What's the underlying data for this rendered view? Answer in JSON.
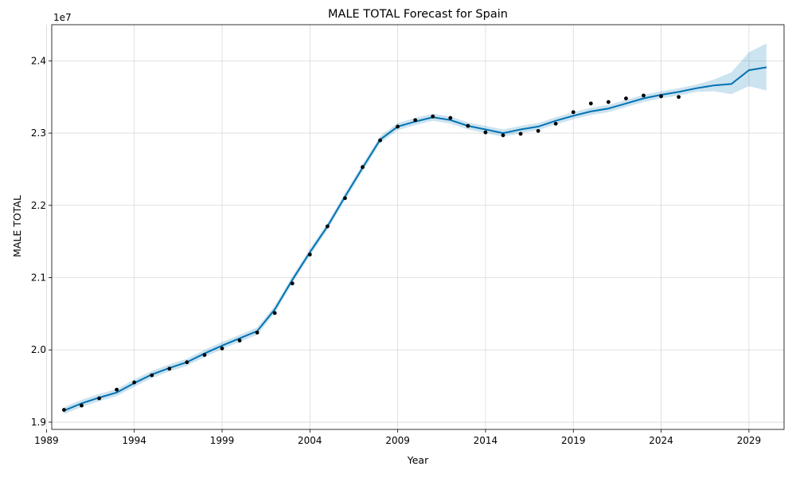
{
  "chart_data": {
    "type": "line",
    "title": "MALE TOTAL Forecast for Spain",
    "xlabel": "Year",
    "ylabel": "MALE TOTAL",
    "y_offset_label": "1e7",
    "xlim": [
      1989.3,
      2031.0
    ],
    "ylim": [
      18.9,
      24.5
    ],
    "x_ticks": [
      1989,
      1994,
      1999,
      2004,
      2009,
      2014,
      2019,
      2024,
      2029
    ],
    "x_tick_labels": [
      "1989",
      "1994",
      "1999",
      "2004",
      "2009",
      "2014",
      "2019",
      "2024",
      "2029"
    ],
    "y_ticks": [
      19.0,
      20.0,
      21.0,
      22.0,
      23.0,
      24.0
    ],
    "y_tick_labels": [
      "1.9",
      "2.0",
      "2.1",
      "2.2",
      "2.3",
      "2.4"
    ],
    "grid": true,
    "colors": {
      "forecast_line": "#0072b2",
      "interval": "#0072b2",
      "observed": "#000000"
    },
    "observed": {
      "x": [
        1990,
        1991,
        1992,
        1993,
        1994,
        1995,
        1996,
        1997,
        1998,
        1999,
        2000,
        2001,
        2002,
        2003,
        2004,
        2005,
        2006,
        2007,
        2008,
        2009,
        2010,
        2011,
        2012,
        2013,
        2014,
        2015,
        2016,
        2017,
        2018,
        2019,
        2020,
        2021,
        2022,
        2023,
        2024,
        2025
      ],
      "y": [
        19.17,
        19.23,
        19.33,
        19.45,
        19.55,
        19.65,
        19.74,
        19.83,
        19.93,
        20.02,
        20.13,
        20.24,
        20.51,
        20.92,
        21.32,
        21.71,
        22.1,
        22.53,
        22.9,
        23.09,
        23.18,
        23.23,
        23.21,
        23.1,
        23.01,
        22.97,
        22.99,
        23.03,
        23.13,
        23.29,
        23.41,
        23.43,
        23.48,
        23.52,
        23.51,
        23.5
      ]
    },
    "forecast": {
      "x": [
        1990,
        1991,
        1992,
        1993,
        1994,
        1995,
        1996,
        1997,
        1998,
        1999,
        2000,
        2001,
        2002,
        2003,
        2004,
        2005,
        2006,
        2007,
        2008,
        2009,
        2010,
        2011,
        2012,
        2013,
        2014,
        2015,
        2016,
        2017,
        2018,
        2019,
        2020,
        2021,
        2022,
        2023,
        2024,
        2025,
        2026,
        2027,
        2028,
        2029,
        2030
      ],
      "y": [
        19.16,
        19.26,
        19.34,
        19.41,
        19.54,
        19.66,
        19.75,
        19.83,
        19.95,
        20.06,
        20.16,
        20.26,
        20.56,
        20.97,
        21.35,
        21.71,
        22.12,
        22.52,
        22.91,
        23.09,
        23.16,
        23.22,
        23.18,
        23.1,
        23.05,
        23.0,
        23.05,
        23.09,
        23.17,
        23.24,
        23.3,
        23.34,
        23.41,
        23.48,
        23.53,
        23.57,
        23.62,
        23.66,
        23.68,
        23.87,
        23.91
      ],
      "lower": [
        19.11,
        19.21,
        19.29,
        19.36,
        19.49,
        19.61,
        19.7,
        19.78,
        19.9,
        20.01,
        20.11,
        20.21,
        20.51,
        20.92,
        21.3,
        21.66,
        22.07,
        22.47,
        22.86,
        23.04,
        23.11,
        23.17,
        23.13,
        23.05,
        23.0,
        22.95,
        23.0,
        23.04,
        23.12,
        23.19,
        23.25,
        23.29,
        23.36,
        23.43,
        23.48,
        23.52,
        23.57,
        23.58,
        23.54,
        23.65,
        23.59
      ],
      "upper": [
        19.21,
        19.31,
        19.39,
        19.46,
        19.59,
        19.71,
        19.8,
        19.88,
        20.0,
        20.11,
        20.21,
        20.31,
        20.61,
        21.02,
        21.4,
        21.76,
        22.17,
        22.57,
        22.96,
        23.14,
        23.21,
        23.27,
        23.23,
        23.15,
        23.1,
        23.05,
        23.1,
        23.14,
        23.22,
        23.29,
        23.35,
        23.39,
        23.46,
        23.53,
        23.58,
        23.62,
        23.67,
        23.74,
        23.84,
        24.12,
        24.24
      ]
    }
  }
}
